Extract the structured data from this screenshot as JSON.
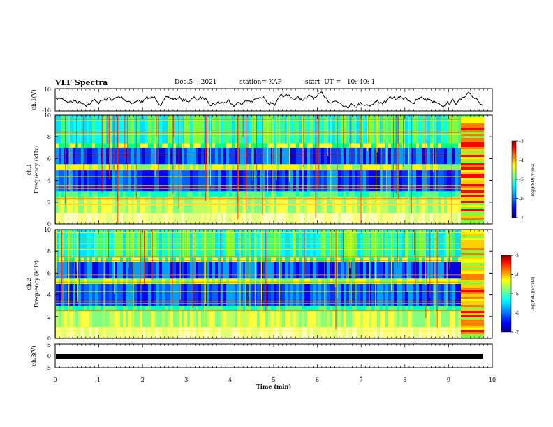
{
  "header": {
    "title": "VLF Spectra",
    "date": "Dec.5  , 2021",
    "station": "station= KAP",
    "start_time": "start  UT =   10: 40: 1"
  },
  "chart_data": [
    {
      "type": "line",
      "panel": "ch1-waveform",
      "ylabel": "ch.1(V)",
      "ylim": [
        -10,
        10
      ],
      "ytick_labels": [
        "10",
        "-10"
      ],
      "series_color": "#000000"
    },
    {
      "type": "heatmap",
      "panel": "ch1-spectrogram",
      "ylabel": "ch.1\nFrequency  (kHz)",
      "ylim": [
        0,
        10
      ],
      "ytick_labels": [
        "0",
        "2",
        "4",
        "6",
        "8",
        "10"
      ],
      "colorbar": {
        "label": "log(PSD)(V²/Hz)",
        "range": [
          -7,
          -3
        ],
        "tick_labels": [
          "-3",
          "-4",
          "-5",
          "-6",
          "-7"
        ],
        "colormap": [
          "#00007f",
          "#0000ff",
          "#00a0ff",
          "#00ffff",
          "#80ff80",
          "#ffff00",
          "#ff8000",
          "#ff0000",
          "#7f0000"
        ]
      }
    },
    {
      "type": "heatmap",
      "panel": "ch2-spectrogram",
      "ylabel": "ch.2\nFrequency  (kHz)",
      "ylim": [
        0,
        10
      ],
      "ytick_labels": [
        "0",
        "2",
        "4",
        "6",
        "8",
        "10"
      ],
      "colorbar": {
        "label": "log(PSD)(V²/Hz)",
        "range": [
          -7,
          -3
        ],
        "tick_labels": [
          "-3",
          "-4",
          "-5",
          "-6",
          "-7"
        ]
      }
    },
    {
      "type": "line",
      "panel": "ch3-waveform",
      "ylabel": "ch.3(V)",
      "ylim": [
        -5,
        5
      ],
      "ytick_labels": [
        "5",
        "0",
        "-5"
      ],
      "series_color": "#000000"
    }
  ],
  "xaxis": {
    "label": "Time  (min)",
    "xlim": [
      0,
      10
    ],
    "tick_labels": [
      "0",
      "1",
      "2",
      "3",
      "4",
      "5",
      "6",
      "7",
      "8",
      "9",
      "10"
    ]
  }
}
